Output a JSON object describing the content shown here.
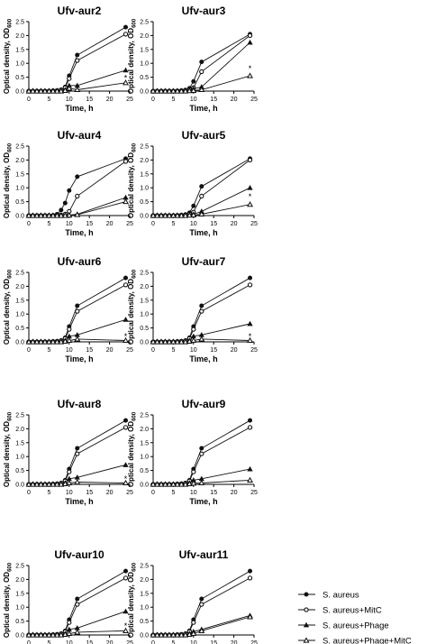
{
  "figure": {
    "ylabel_main": "Optical density, OD",
    "ylabel_sub": "600",
    "xlabel": "Time, h",
    "asterisk": "*"
  },
  "legend": [
    {
      "label": "S. aureus",
      "marker": "filled-circle"
    },
    {
      "label": "S. aureus+MitC",
      "marker": "open-circle"
    },
    {
      "label": "S. aureus+Phage",
      "marker": "filled-triangle"
    },
    {
      "label": "S. aureus+Phage+MitC",
      "marker": "open-triangle"
    }
  ],
  "chart_data": [
    {
      "type": "line",
      "title": "Ufv-aur2",
      "xlabel": "Time, h",
      "ylabel": "Optical density, OD600",
      "xlim": [
        0,
        25
      ],
      "ylim": [
        0,
        2.5
      ],
      "x": [
        0,
        1,
        2,
        3,
        4,
        5,
        6,
        7,
        8,
        9,
        10,
        12,
        24
      ],
      "series": [
        {
          "name": "S. aureus",
          "values": [
            0,
            0,
            0,
            0,
            0,
            0,
            0.01,
            0.02,
            0.05,
            0.15,
            0.55,
            1.3,
            2.3
          ]
        },
        {
          "name": "S. aureus+MitC",
          "values": [
            0,
            0,
            0,
            0,
            0,
            0,
            0.01,
            0.02,
            0.04,
            0.12,
            0.45,
            1.1,
            2.05
          ]
        },
        {
          "name": "S. aureus+Phage",
          "values": [
            0,
            0,
            0,
            0,
            0,
            0,
            0,
            0,
            0.01,
            0.05,
            0.2,
            0.2,
            0.75
          ]
        },
        {
          "name": "S. aureus+Phage+MitC",
          "values": [
            0,
            0,
            0,
            0,
            0,
            0,
            0,
            0,
            0,
            0.02,
            0.1,
            0.05,
            0.3
          ]
        }
      ],
      "annotation": {
        "text": "*",
        "x": 24,
        "y": 0.5
      }
    },
    {
      "type": "line",
      "title": "Ufv-aur3",
      "xlabel": "Time, h",
      "ylabel": "Optical density, OD600",
      "xlim": [
        0,
        25
      ],
      "ylim": [
        0,
        2.5
      ],
      "x": [
        0,
        1,
        2,
        3,
        4,
        5,
        6,
        7,
        8,
        9,
        10,
        12,
        24
      ],
      "series": [
        {
          "name": "S. aureus",
          "values": [
            0,
            0,
            0,
            0,
            0,
            0,
            0.01,
            0.02,
            0.04,
            0.1,
            0.35,
            1.05,
            2.05
          ]
        },
        {
          "name": "S. aureus+MitC",
          "values": [
            0,
            0,
            0,
            0,
            0,
            0,
            0,
            0.01,
            0.02,
            0.05,
            0.12,
            0.7,
            2.0
          ]
        },
        {
          "name": "S. aureus+Phage",
          "values": [
            0,
            0,
            0,
            0,
            0,
            0,
            0,
            0,
            0.01,
            0.03,
            0.08,
            0.15,
            1.75
          ]
        },
        {
          "name": "S. aureus+Phage+MitC",
          "values": [
            0,
            0,
            0,
            0,
            0,
            0,
            0,
            0,
            0,
            0.01,
            0.02,
            0.05,
            0.55
          ]
        }
      ],
      "annotation": {
        "text": "*",
        "x": 24,
        "y": 0.85
      }
    },
    {
      "type": "line",
      "title": "Ufv-aur4",
      "xlabel": "Time, h",
      "ylabel": "Optical density, OD600",
      "xlim": [
        0,
        25
      ],
      "ylim": [
        0,
        2.5
      ],
      "x": [
        0,
        1,
        2,
        3,
        4,
        5,
        6,
        7,
        8,
        9,
        10,
        12,
        24
      ],
      "series": [
        {
          "name": "S. aureus",
          "values": [
            0,
            0,
            0,
            0,
            0,
            0,
            0.01,
            0.05,
            0.2,
            0.45,
            0.9,
            1.4,
            2.05
          ]
        },
        {
          "name": "S. aureus+MitC",
          "values": [
            0,
            0,
            0,
            0,
            0,
            0,
            0,
            0.01,
            0.02,
            0.05,
            0.15,
            0.7,
            1.95
          ]
        },
        {
          "name": "S. aureus+Phage",
          "values": [
            0,
            0,
            0,
            0,
            0,
            0,
            0,
            0,
            0,
            0.01,
            0.02,
            0.05,
            0.65
          ]
        },
        {
          "name": "S. aureus+Phage+MitC",
          "values": [
            0,
            0,
            0,
            0,
            0,
            0,
            0,
            0,
            0,
            0,
            0.01,
            0.03,
            0.5
          ]
        }
      ],
      "annotation": null
    },
    {
      "type": "line",
      "title": "Ufv-aur5",
      "xlabel": "Time, h",
      "ylabel": "Optical density, OD600",
      "xlim": [
        0,
        25
      ],
      "ylim": [
        0,
        2.5
      ],
      "x": [
        0,
        1,
        2,
        3,
        4,
        5,
        6,
        7,
        8,
        9,
        10,
        12,
        24
      ],
      "series": [
        {
          "name": "S. aureus",
          "values": [
            0,
            0,
            0,
            0,
            0,
            0,
            0.01,
            0.02,
            0.04,
            0.1,
            0.35,
            1.05,
            2.05
          ]
        },
        {
          "name": "S. aureus+MitC",
          "values": [
            0,
            0,
            0,
            0,
            0,
            0,
            0,
            0.01,
            0.02,
            0.05,
            0.12,
            0.7,
            2.0
          ]
        },
        {
          "name": "S. aureus+Phage",
          "values": [
            0,
            0,
            0,
            0,
            0,
            0,
            0,
            0,
            0.01,
            0.02,
            0.05,
            0.15,
            1.0
          ]
        },
        {
          "name": "S. aureus+Phage+MitC",
          "values": [
            0,
            0,
            0,
            0,
            0,
            0,
            0,
            0,
            0,
            0.01,
            0.02,
            0.05,
            0.4
          ]
        }
      ],
      "annotation": {
        "text": "*",
        "x": 24,
        "y": 0.72
      }
    },
    {
      "type": "line",
      "title": "Ufv-aur6",
      "xlabel": "Time, h",
      "ylabel": "Optical density, OD600",
      "xlim": [
        0,
        25
      ],
      "ylim": [
        0,
        2.5
      ],
      "x": [
        0,
        1,
        2,
        3,
        4,
        5,
        6,
        7,
        8,
        9,
        10,
        12,
        24
      ],
      "series": [
        {
          "name": "S. aureus",
          "values": [
            0,
            0,
            0,
            0,
            0,
            0,
            0.01,
            0.02,
            0.05,
            0.15,
            0.55,
            1.3,
            2.3
          ]
        },
        {
          "name": "S. aureus+MitC",
          "values": [
            0,
            0,
            0,
            0,
            0,
            0,
            0.01,
            0.02,
            0.04,
            0.12,
            0.45,
            1.1,
            2.05
          ]
        },
        {
          "name": "S. aureus+Phage",
          "values": [
            0,
            0,
            0,
            0,
            0,
            0,
            0,
            0,
            0.01,
            0.05,
            0.2,
            0.25,
            0.8
          ]
        },
        {
          "name": "S. aureus+Phage+MitC",
          "values": [
            0,
            0,
            0,
            0,
            0,
            0,
            0,
            0,
            0,
            0.02,
            0.05,
            0.1,
            0.05
          ]
        }
      ],
      "annotation": {
        "text": "*",
        "x": 24,
        "y": 0.22
      }
    },
    {
      "type": "line",
      "title": "Ufv-aur7",
      "xlabel": "Time, h",
      "ylabel": "Optical density, OD600",
      "xlim": [
        0,
        25
      ],
      "ylim": [
        0,
        2.5
      ],
      "x": [
        0,
        1,
        2,
        3,
        4,
        5,
        6,
        7,
        8,
        9,
        10,
        12,
        24
      ],
      "series": [
        {
          "name": "S. aureus",
          "values": [
            0,
            0,
            0,
            0,
            0,
            0,
            0.01,
            0.02,
            0.05,
            0.15,
            0.55,
            1.3,
            2.3
          ]
        },
        {
          "name": "S. aureus+MitC",
          "values": [
            0,
            0,
            0,
            0,
            0,
            0,
            0.01,
            0.02,
            0.04,
            0.12,
            0.45,
            1.1,
            2.05
          ]
        },
        {
          "name": "S. aureus+Phage",
          "values": [
            0,
            0,
            0,
            0,
            0,
            0,
            0,
            0,
            0.01,
            0.05,
            0.2,
            0.25,
            0.65
          ]
        },
        {
          "name": "S. aureus+Phage+MitC",
          "values": [
            0,
            0,
            0,
            0,
            0,
            0,
            0,
            0,
            0,
            0.02,
            0.05,
            0.1,
            0.05
          ]
        }
      ],
      "annotation": {
        "text": "*",
        "x": 24,
        "y": 0.22
      }
    },
    {
      "type": "line",
      "title": "Ufv-aur8",
      "xlabel": "Time, h",
      "ylabel": "Optical density, OD600",
      "xlim": [
        0,
        25
      ],
      "ylim": [
        0,
        2.5
      ],
      "x": [
        0,
        1,
        2,
        3,
        4,
        5,
        6,
        7,
        8,
        9,
        10,
        12,
        24
      ],
      "series": [
        {
          "name": "S. aureus",
          "values": [
            0,
            0,
            0,
            0,
            0,
            0,
            0.01,
            0.02,
            0.05,
            0.15,
            0.55,
            1.3,
            2.3
          ]
        },
        {
          "name": "S. aureus+MitC",
          "values": [
            0,
            0,
            0,
            0,
            0,
            0,
            0.01,
            0.02,
            0.04,
            0.12,
            0.45,
            1.1,
            2.05
          ]
        },
        {
          "name": "S. aureus+Phage",
          "values": [
            0,
            0,
            0,
            0,
            0,
            0,
            0,
            0,
            0.01,
            0.05,
            0.2,
            0.25,
            0.7
          ]
        },
        {
          "name": "S. aureus+Phage+MitC",
          "values": [
            0,
            0,
            0,
            0,
            0,
            0,
            0,
            0,
            0,
            0.02,
            0.05,
            0.08,
            0.05
          ]
        }
      ],
      "annotation": {
        "text": "*",
        "x": 24,
        "y": 0.22
      }
    },
    {
      "type": "line",
      "title": "Ufv-aur9",
      "xlabel": "Time, h",
      "ylabel": "Optical density, OD600",
      "xlim": [
        0,
        25
      ],
      "ylim": [
        0,
        2.5
      ],
      "x": [
        0,
        1,
        2,
        3,
        4,
        5,
        6,
        7,
        8,
        9,
        10,
        12,
        24
      ],
      "series": [
        {
          "name": "S. aureus",
          "values": [
            0,
            0,
            0,
            0,
            0,
            0,
            0.01,
            0.02,
            0.05,
            0.15,
            0.55,
            1.3,
            2.3
          ]
        },
        {
          "name": "S. aureus+MitC",
          "values": [
            0,
            0,
            0,
            0,
            0,
            0,
            0.01,
            0.02,
            0.04,
            0.12,
            0.45,
            1.1,
            2.05
          ]
        },
        {
          "name": "S. aureus+Phage",
          "values": [
            0,
            0,
            0,
            0,
            0,
            0,
            0,
            0,
            0.01,
            0.05,
            0.15,
            0.2,
            0.55
          ]
        },
        {
          "name": "S. aureus+Phage+MitC",
          "values": [
            0,
            0,
            0,
            0,
            0,
            0,
            0,
            0,
            0,
            0.02,
            0.04,
            0.05,
            0.15
          ]
        }
      ],
      "annotation": null
    },
    {
      "type": "line",
      "title": "Ufv-aur10",
      "xlabel": "Time, h",
      "ylabel": "Optical density, OD600",
      "xlim": [
        0,
        25
      ],
      "ylim": [
        0,
        2.5
      ],
      "x": [
        0,
        1,
        2,
        3,
        4,
        5,
        6,
        7,
        8,
        9,
        10,
        12,
        24
      ],
      "series": [
        {
          "name": "S. aureus",
          "values": [
            0,
            0,
            0,
            0,
            0,
            0,
            0.01,
            0.02,
            0.05,
            0.15,
            0.55,
            1.3,
            2.3
          ]
        },
        {
          "name": "S. aureus+MitC",
          "values": [
            0,
            0,
            0,
            0,
            0,
            0,
            0.01,
            0.02,
            0.04,
            0.12,
            0.45,
            1.1,
            2.05
          ]
        },
        {
          "name": "S. aureus+Phage",
          "values": [
            0,
            0,
            0,
            0,
            0,
            0,
            0,
            0,
            0.01,
            0.05,
            0.2,
            0.25,
            0.85
          ]
        },
        {
          "name": "S. aureus+Phage+MitC",
          "values": [
            0,
            0,
            0,
            0,
            0,
            0,
            0,
            0,
            0,
            0.02,
            0.05,
            0.1,
            0.15
          ]
        }
      ],
      "annotation": {
        "text": "*",
        "x": 24,
        "y": 0.35
      }
    },
    {
      "type": "line",
      "title": "Ufv-aur11",
      "xlabel": "Time, h",
      "ylabel": "Optical density, OD600",
      "xlim": [
        0,
        25
      ],
      "ylim": [
        0,
        2.5
      ],
      "x": [
        0,
        1,
        2,
        3,
        4,
        5,
        6,
        7,
        8,
        9,
        10,
        12,
        24
      ],
      "series": [
        {
          "name": "S. aureus",
          "values": [
            0,
            0,
            0,
            0,
            0,
            0,
            0.01,
            0.02,
            0.05,
            0.15,
            0.55,
            1.3,
            2.3
          ]
        },
        {
          "name": "S. aureus+MitC",
          "values": [
            0,
            0,
            0,
            0,
            0,
            0,
            0.01,
            0.02,
            0.04,
            0.12,
            0.45,
            1.1,
            2.05
          ]
        },
        {
          "name": "S. aureus+Phage",
          "values": [
            0,
            0,
            0,
            0,
            0,
            0,
            0,
            0,
            0.01,
            0.05,
            0.12,
            0.2,
            0.7
          ]
        },
        {
          "name": "S. aureus+Phage+MitC",
          "values": [
            0,
            0,
            0,
            0,
            0,
            0,
            0,
            0,
            0,
            0.02,
            0.05,
            0.15,
            0.65
          ]
        }
      ],
      "annotation": null
    }
  ]
}
